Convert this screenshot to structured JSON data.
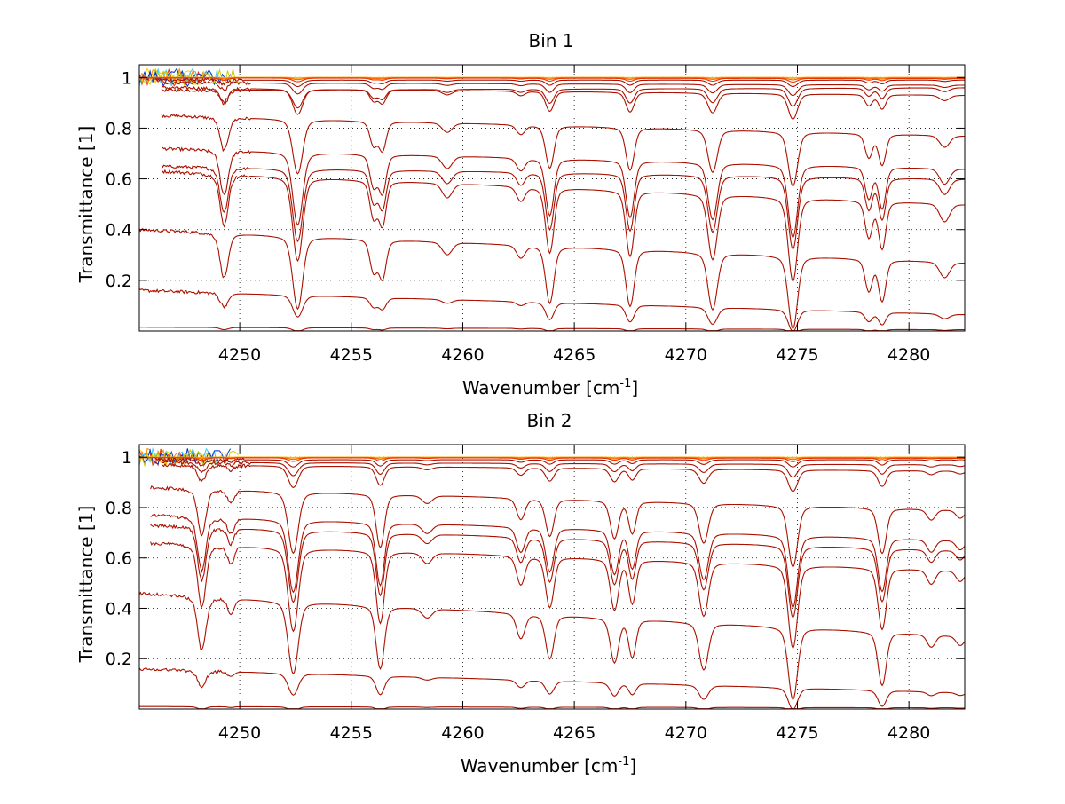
{
  "colors": {
    "background": "#ffffff",
    "axis": "#000000",
    "grid": "#000000",
    "line_main": "#aa1100",
    "noise": [
      "#ffcc00",
      "#ff8800",
      "#ee3300",
      "#33ccff",
      "#0033cc",
      "#cccc00"
    ]
  },
  "chart_data": [
    {
      "type": "line",
      "title": "Bin 1",
      "xlabel": "Wavenumber [cm",
      "xlabel_sup": "-1",
      "xlabel_end": "]",
      "ylabel": "Transmittance [1]",
      "xlim": [
        4245.5,
        4282.5
      ],
      "ylim": [
        0,
        1.05
      ],
      "xticks": [
        4250,
        4255,
        4260,
        4265,
        4270,
        4275,
        4280
      ],
      "yticks": [
        0.2,
        0.4,
        0.6,
        0.8,
        1
      ],
      "ytick_labels": [
        "0.2",
        "0.4",
        "0.6",
        "0.8",
        "1"
      ],
      "grid": true,
      "lines": [
        {
          "xs": 4245.5,
          "ys": 1.0,
          "xe": 4282.5,
          "ye": 1.0,
          "rise": 0.0,
          "rd": 20,
          "scale": 0.002
        },
        {
          "xs": 4245.5,
          "ys": 1.0,
          "xe": 4282.5,
          "ye": 1.0,
          "rise": 0.0,
          "rd": 20,
          "scale": 0.012
        },
        {
          "xs": 4245.5,
          "ys": 0.999,
          "xe": 4282.5,
          "ye": 0.998,
          "rise": 0.0,
          "rd": 20,
          "scale": 0.025
        },
        {
          "xs": 4245.5,
          "ys": 0.998,
          "xe": 4282.5,
          "ye": 0.996,
          "rise": 0.0,
          "rd": 20,
          "scale": 0.05
        },
        {
          "xs": 4246.2,
          "ys": 0.99,
          "xe": 4282.5,
          "ye": 0.99,
          "rise": 0.01,
          "rd": 8,
          "scale": 0.09
        },
        {
          "xs": 4246.5,
          "ys": 0.98,
          "xe": 4282.5,
          "ye": 0.97,
          "rise": 0.01,
          "rd": 8,
          "scale": 0.15
        },
        {
          "xs": 4246.5,
          "ys": 0.95,
          "xe": 4282.5,
          "ye": 0.96,
          "rise": 0.01,
          "rd": 8,
          "scale": 0.25
        },
        {
          "xs": 4246.5,
          "ys": 0.96,
          "xe": 4282.5,
          "ye": 0.93,
          "rise": 0.02,
          "rd": 8,
          "scale": 0.35
        },
        {
          "xs": 4246.5,
          "ys": 0.85,
          "xe": 4282.5,
          "ye": 0.77,
          "rise": 0.1,
          "rd": 8,
          "scale": 0.75
        },
        {
          "xs": 4246.5,
          "ys": 0.72,
          "xe": 4282.5,
          "ye": 0.64,
          "rise": 0.1,
          "rd": 8,
          "scale": 1.0
        },
        {
          "xs": 4246.5,
          "ys": 0.65,
          "xe": 4282.5,
          "ye": 0.6,
          "rise": 0.1,
          "rd": 8,
          "scale": 1.0
        },
        {
          "xs": 4246.5,
          "ys": 0.63,
          "xe": 4282.5,
          "ye": 0.5,
          "rise": 0.12,
          "rd": 8,
          "scale": 1.15
        },
        {
          "xs": 4245.5,
          "ys": 0.4,
          "xe": 4282.5,
          "ye": 0.27,
          "rise": 0.13,
          "rd": 5,
          "scale": 1.0
        },
        {
          "xs": 4245.5,
          "ys": 0.16,
          "xe": 4282.5,
          "ye": 0.065,
          "rise": 0.06,
          "rd": 4,
          "scale": 0.3
        },
        {
          "xs": 4245.5,
          "ys": 0.015,
          "xe": 4282.5,
          "ye": 0.005,
          "rise": 0.0,
          "rd": 5,
          "scale": 0.05
        }
      ],
      "absorption_lines": [
        {
          "x": 4249.3,
          "d": 0.14,
          "w": 0.25
        },
        {
          "x": 4252.6,
          "d": 0.23,
          "w": 0.3
        },
        {
          "x": 4256.0,
          "d": 0.1,
          "w": 0.22
        },
        {
          "x": 4256.4,
          "d": 0.12,
          "w": 0.22
        },
        {
          "x": 4259.3,
          "d": 0.04,
          "w": 0.3
        },
        {
          "x": 4262.6,
          "d": 0.04,
          "w": 0.25
        },
        {
          "x": 4263.9,
          "d": 0.18,
          "w": 0.25
        },
        {
          "x": 4267.5,
          "d": 0.18,
          "w": 0.25
        },
        {
          "x": 4271.2,
          "d": 0.18,
          "w": 0.28
        },
        {
          "x": 4274.8,
          "d": 0.23,
          "w": 0.28
        },
        {
          "x": 4278.2,
          "d": 0.1,
          "w": 0.22
        },
        {
          "x": 4278.8,
          "d": 0.13,
          "w": 0.22
        },
        {
          "x": 4281.6,
          "d": 0.05,
          "w": 0.3
        }
      ]
    },
    {
      "type": "line",
      "title": "Bin 2",
      "xlabel": "Wavenumber [cm",
      "xlabel_sup": "-1",
      "xlabel_end": "]",
      "ylabel": "Transmittance [1]",
      "xlim": [
        4245.5,
        4282.5
      ],
      "ylim": [
        0,
        1.05
      ],
      "xticks": [
        4250,
        4255,
        4260,
        4265,
        4270,
        4275,
        4280
      ],
      "yticks": [
        0.2,
        0.4,
        0.6,
        0.8,
        1
      ],
      "ytick_labels": [
        "0.2",
        "0.4",
        "0.6",
        "0.8",
        "1"
      ],
      "grid": true,
      "lines": [
        {
          "xs": 4245.5,
          "ys": 1.0,
          "xe": 4282.5,
          "ye": 1.0,
          "rise": 0.0,
          "rd": 20,
          "scale": 0.002
        },
        {
          "xs": 4245.5,
          "ys": 1.0,
          "xe": 4282.5,
          "ye": 1.0,
          "rise": 0.0,
          "rd": 20,
          "scale": 0.012
        },
        {
          "xs": 4245.5,
          "ys": 0.999,
          "xe": 4282.5,
          "ye": 0.998,
          "rise": 0.0,
          "rd": 20,
          "scale": 0.025
        },
        {
          "xs": 4245.5,
          "ys": 0.998,
          "xe": 4282.5,
          "ye": 0.996,
          "rise": 0.0,
          "rd": 20,
          "scale": 0.05
        },
        {
          "xs": 4246.2,
          "ys": 0.99,
          "xe": 4282.5,
          "ye": 0.99,
          "rise": 0.01,
          "rd": 8,
          "scale": 0.1
        },
        {
          "xs": 4246.5,
          "ys": 0.98,
          "xe": 4282.5,
          "ye": 0.97,
          "rise": 0.01,
          "rd": 8,
          "scale": 0.18
        },
        {
          "xs": 4246.5,
          "ys": 0.97,
          "xe": 4282.5,
          "ye": 0.945,
          "rise": 0.02,
          "rd": 8,
          "scale": 0.3
        },
        {
          "xs": 4246.0,
          "ys": 0.88,
          "xe": 4282.5,
          "ye": 0.79,
          "rise": 0.1,
          "rd": 8,
          "scale": 0.85
        },
        {
          "xs": 4246.0,
          "ys": 0.77,
          "xe": 4282.5,
          "ye": 0.67,
          "rise": 0.1,
          "rd": 8,
          "scale": 1.0
        },
        {
          "xs": 4246.0,
          "ys": 0.73,
          "xe": 4282.5,
          "ye": 0.63,
          "rise": 0.1,
          "rd": 8,
          "scale": 1.0
        },
        {
          "xs": 4246.0,
          "ys": 0.66,
          "xe": 4282.5,
          "ye": 0.55,
          "rise": 0.12,
          "rd": 8,
          "scale": 1.15
        },
        {
          "xs": 4245.5,
          "ys": 0.46,
          "xe": 4282.5,
          "ye": 0.29,
          "rise": 0.16,
          "rd": 5,
          "scale": 1.0
        },
        {
          "xs": 4245.5,
          "ys": 0.16,
          "xe": 4282.5,
          "ye": 0.065,
          "rise": 0.06,
          "rd": 4,
          "scale": 0.3
        },
        {
          "xs": 4245.5,
          "ys": 0.01,
          "xe": 4282.5,
          "ye": 0.005,
          "rise": 0.0,
          "rd": 5,
          "scale": 0.05
        }
      ],
      "absorption_lines": [
        {
          "x": 4248.3,
          "d": 0.17,
          "w": 0.25
        },
        {
          "x": 4249.6,
          "d": 0.05,
          "w": 0.2
        },
        {
          "x": 4252.4,
          "d": 0.23,
          "w": 0.3
        },
        {
          "x": 4256.3,
          "d": 0.2,
          "w": 0.25
        },
        {
          "x": 4258.4,
          "d": 0.03,
          "w": 0.3
        },
        {
          "x": 4262.6,
          "d": 0.08,
          "w": 0.25
        },
        {
          "x": 4263.9,
          "d": 0.14,
          "w": 0.25
        },
        {
          "x": 4266.8,
          "d": 0.14,
          "w": 0.25
        },
        {
          "x": 4267.6,
          "d": 0.12,
          "w": 0.22
        },
        {
          "x": 4270.8,
          "d": 0.15,
          "w": 0.28
        },
        {
          "x": 4274.8,
          "d": 0.23,
          "w": 0.28
        },
        {
          "x": 4278.8,
          "d": 0.17,
          "w": 0.25
        },
        {
          "x": 4281.0,
          "d": 0.04,
          "w": 0.25
        },
        {
          "x": 4282.3,
          "d": 0.03,
          "w": 0.25
        }
      ]
    }
  ]
}
